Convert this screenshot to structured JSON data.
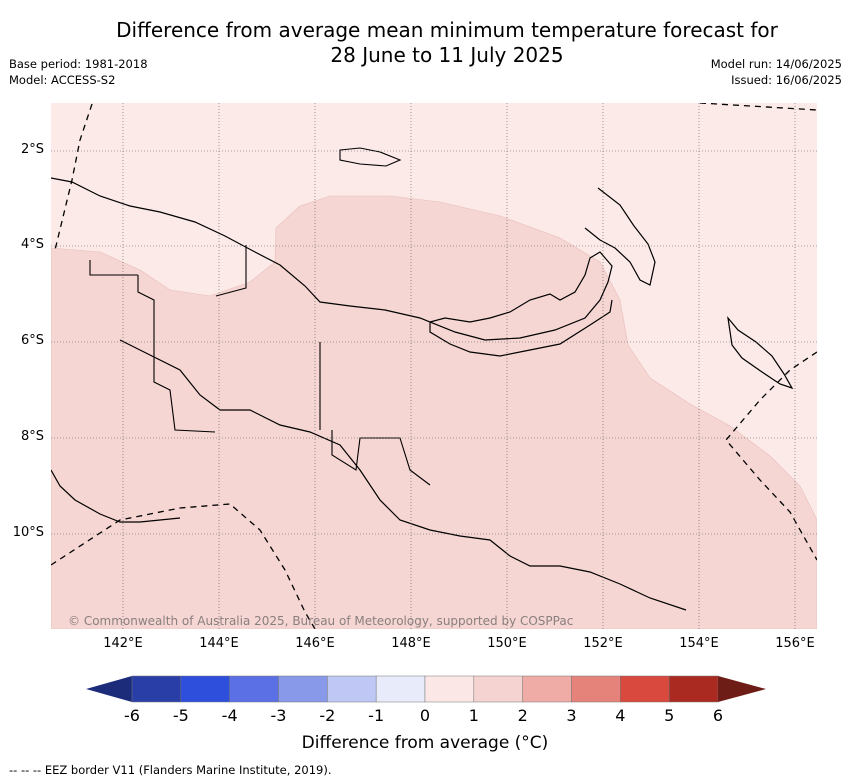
{
  "title_line1": "Difference from average mean minimum temperature forecast for",
  "title_line2": "28 June to 11 July 2025",
  "base_period": "Base period: 1981-2018",
  "model": "Model: ACCESS-S2",
  "model_run": "Model run: 14/06/2025",
  "issued": "Issued: 16/06/2025",
  "x_ticks": [
    "142°E",
    "144°E",
    "146°E",
    "148°E",
    "150°E",
    "152°E",
    "154°E",
    "156°E"
  ],
  "y_ticks": [
    "2°S",
    "4°S",
    "6°S",
    "8°S",
    "10°S"
  ],
  "copyright": "© Commonwealth of Australia 2025, Bureau of Meteorology, supported by COSPPac",
  "colorbar": {
    "labels": [
      "-6",
      "-5",
      "-4",
      "-3",
      "-2",
      "-1",
      "0",
      "1",
      "2",
      "3",
      "4",
      "5",
      "6"
    ],
    "colors": [
      "#2a3ea8",
      "#2e4edc",
      "#5a70e4",
      "#8899ea",
      "#bfc7f4",
      "#e7ebfa",
      "#fbe8e6",
      "#f5d3d0",
      "#efaba6",
      "#e5827a",
      "#d9493e",
      "#aa2a22"
    ],
    "under_color": "#1c2b7a",
    "over_color": "#6e1c16",
    "title": "Difference from average (°C)"
  },
  "map_colors": {
    "light_band": "#fbeae8",
    "mid_band": "#f5d6d3",
    "coast": "#000000"
  },
  "eez_note": "-- -- -- EEZ border V11 (Flanders Marine Institute, 2019)."
}
